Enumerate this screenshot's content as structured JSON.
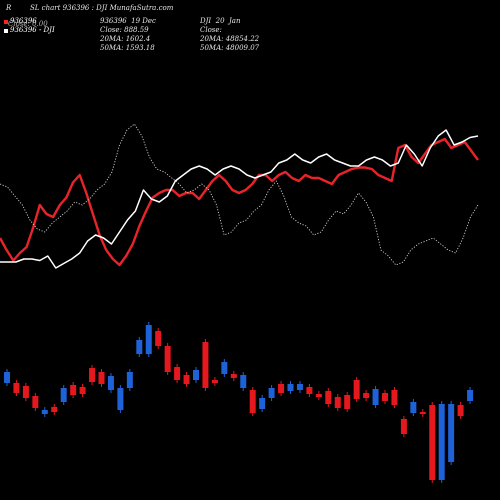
{
  "header": {
    "left_letter": "R",
    "title": "SL chart 936396 : DJI MunafaSutra.com"
  },
  "legend": {
    "item1": "936396",
    "item2": "936396 - DJI",
    "swatch_colors": [
      "#ff2020",
      "#ffffff",
      "#bbbbbb"
    ]
  },
  "info_left": {
    "line1": "936396  19 Dec",
    "line2": "Close: 888.59",
    "line3": "20MA: 1602.4",
    "line4": "50MA: 1593.18"
  },
  "info_right": {
    "line1": "DJI  20  Jan",
    "line2": "Close:",
    "line3": "20MA: 48854.22",
    "line4": "50MA: 48009.07"
  },
  "overlap_text": "Close: 0.00",
  "colors": {
    "background": "#000000",
    "red_line": "#e8242a",
    "white_line": "#ffffff",
    "dotted_line": "#cfcfcf",
    "up_candle": "#1e62d8",
    "down_candle": "#e5181e"
  },
  "chart_data": {
    "type": "line",
    "note_scale": "normalized",
    "top_panel": {
      "series": [
        {
          "style": "red",
          "values": [
            0.48,
            0.4,
            0.33,
            0.38,
            0.42,
            0.55,
            0.7,
            0.64,
            0.62,
            0.7,
            0.75,
            0.85,
            0.9,
            0.78,
            0.64,
            0.5,
            0.4,
            0.34,
            0.3,
            0.36,
            0.44,
            0.56,
            0.66,
            0.75,
            0.78,
            0.8,
            0.8,
            0.76,
            0.78,
            0.78,
            0.74,
            0.8,
            0.86,
            0.9,
            0.86,
            0.8,
            0.78,
            0.8,
            0.84,
            0.9,
            0.9,
            0.86,
            0.9,
            0.92,
            0.88,
            0.86,
            0.9,
            0.88,
            0.88,
            0.86,
            0.84,
            0.9,
            0.92,
            0.94,
            0.95,
            0.95,
            0.94,
            0.9,
            0.88,
            0.86,
            1.08,
            1.1,
            1.02,
            0.98,
            1.04,
            1.1,
            1.12,
            1.14,
            1.08,
            1.1,
            1.12,
            1.06,
            1.0
          ]
        },
        {
          "style": "white",
          "values": [
            0.32,
            0.32,
            0.32,
            0.34,
            0.34,
            0.33,
            0.36,
            0.28,
            0.31,
            0.34,
            0.38,
            0.46,
            0.5,
            0.48,
            0.44,
            0.52,
            0.6,
            0.66,
            0.8,
            0.74,
            0.72,
            0.76,
            0.86,
            0.9,
            0.94,
            0.96,
            0.94,
            0.9,
            0.94,
            0.96,
            0.94,
            0.9,
            0.88,
            0.9,
            0.92,
            0.98,
            1.0,
            1.04,
            1.0,
            0.98,
            1.02,
            1.04,
            1.0,
            0.98,
            0.96,
            0.96,
            1.0,
            1.02,
            1.0,
            0.96,
            0.98,
            1.1,
            1.04,
            0.96,
            1.08,
            1.16,
            1.2,
            1.1,
            1.12,
            1.15,
            1.16
          ]
        },
        {
          "style": "dotted",
          "values": [
            0.84,
            0.82,
            0.76,
            0.7,
            0.6,
            0.54,
            0.52,
            0.58,
            0.62,
            0.66,
            0.72,
            0.7,
            0.74,
            0.8,
            0.84,
            0.92,
            1.1,
            1.2,
            1.24,
            1.16,
            1.02,
            0.94,
            0.92,
            0.88,
            0.84,
            0.78,
            0.8,
            0.84,
            0.8,
            0.7,
            0.5,
            0.52,
            0.58,
            0.6,
            0.66,
            0.7,
            0.8,
            0.86,
            0.76,
            0.62,
            0.58,
            0.56,
            0.5,
            0.52,
            0.6,
            0.66,
            0.64,
            0.7,
            0.78,
            0.72,
            0.62,
            0.4,
            0.36,
            0.3,
            0.32,
            0.4,
            0.44,
            0.46,
            0.48,
            0.44,
            0.4,
            0.38,
            0.48,
            0.62,
            0.7
          ]
        }
      ]
    },
    "bottom_panel": {
      "type": "candlestick",
      "candles": [
        {
          "o": 372,
          "c": 383,
          "up": true
        },
        {
          "o": 383,
          "c": 393,
          "up": false
        },
        {
          "o": 386,
          "c": 398,
          "up": false
        },
        {
          "o": 396,
          "c": 408,
          "up": false
        },
        {
          "o": 410,
          "c": 414,
          "up": true
        },
        {
          "o": 407,
          "c": 412,
          "up": false
        },
        {
          "o": 388,
          "c": 402,
          "up": true
        },
        {
          "o": 385,
          "c": 395,
          "up": false
        },
        {
          "o": 387,
          "c": 394,
          "up": false
        },
        {
          "o": 368,
          "c": 382,
          "up": false
        },
        {
          "o": 372,
          "c": 384,
          "up": false
        },
        {
          "o": 376,
          "c": 390,
          "up": true
        },
        {
          "o": 388,
          "c": 410,
          "up": true
        },
        {
          "o": 372,
          "c": 388,
          "up": true
        },
        {
          "o": 340,
          "c": 354,
          "up": true
        },
        {
          "o": 325,
          "c": 354,
          "up": true
        },
        {
          "o": 331,
          "c": 346,
          "up": false
        },
        {
          "o": 346,
          "c": 372,
          "up": false
        },
        {
          "o": 367,
          "c": 380,
          "up": false
        },
        {
          "o": 375,
          "c": 384,
          "up": false
        },
        {
          "o": 370,
          "c": 380,
          "up": true
        },
        {
          "o": 342,
          "c": 388,
          "up": false
        },
        {
          "o": 380,
          "c": 383,
          "up": false
        },
        {
          "o": 362,
          "c": 374,
          "up": true
        },
        {
          "o": 374,
          "c": 378,
          "up": false
        },
        {
          "o": 375,
          "c": 388,
          "up": true
        },
        {
          "o": 390,
          "c": 413,
          "up": false
        },
        {
          "o": 398,
          "c": 409,
          "up": true
        },
        {
          "o": 388,
          "c": 398,
          "up": true
        },
        {
          "o": 384,
          "c": 393,
          "up": false
        },
        {
          "o": 384,
          "c": 391,
          "up": true
        },
        {
          "o": 384,
          "c": 390,
          "up": true
        },
        {
          "o": 387,
          "c": 394,
          "up": false
        },
        {
          "o": 394,
          "c": 397,
          "up": false
        },
        {
          "o": 391,
          "c": 404,
          "up": false
        },
        {
          "o": 397,
          "c": 408,
          "up": false
        },
        {
          "o": 395,
          "c": 409,
          "up": false
        },
        {
          "o": 380,
          "c": 399,
          "up": false
        },
        {
          "o": 393,
          "c": 398,
          "up": false
        },
        {
          "o": 389,
          "c": 405,
          "up": true
        },
        {
          "o": 393,
          "c": 401,
          "up": false
        },
        {
          "o": 390,
          "c": 405,
          "up": false
        },
        {
          "o": 419,
          "c": 434,
          "up": false
        },
        {
          "o": 402,
          "c": 413,
          "up": true
        },
        {
          "o": 412,
          "c": 414,
          "up": false
        },
        {
          "o": 405,
          "c": 480,
          "up": false
        },
        {
          "o": 404,
          "c": 480,
          "up": true
        },
        {
          "o": 404,
          "c": 462,
          "up": true
        },
        {
          "o": 405,
          "c": 416,
          "up": false
        },
        {
          "o": 390,
          "c": 401,
          "up": true
        }
      ]
    }
  }
}
